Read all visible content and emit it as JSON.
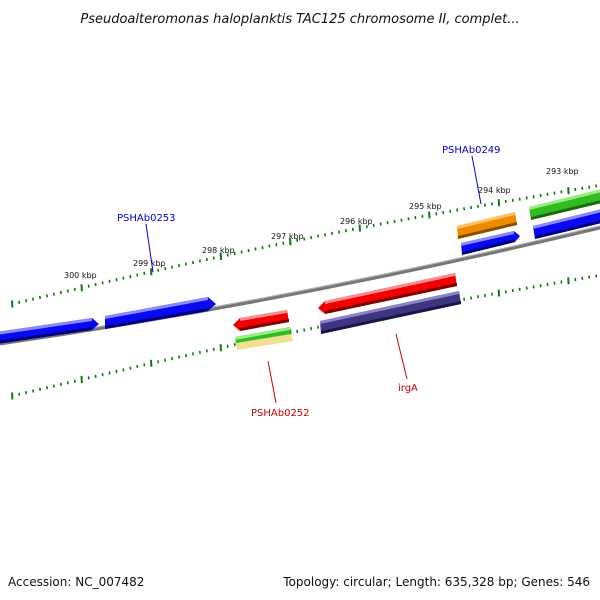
{
  "title": "Pseudoalteromonas haloplanktis TAC125 chromosome II, complet...",
  "footer": {
    "accession": "Accession: NC_007482",
    "summary": "Topology: circular; Length: 635,328 bp; Genes: 546"
  },
  "ticks": [
    {
      "label": "300 kbp"
    },
    {
      "label": "299 kbp"
    },
    {
      "label": "298 kbp"
    },
    {
      "label": "297 kbp"
    },
    {
      "label": "296 kbp"
    },
    {
      "label": "295 kbp"
    },
    {
      "label": "294 kbp"
    },
    {
      "label": "293 kbp"
    }
  ],
  "gene_labels": [
    {
      "text": "PSHAb0253",
      "color": "#0000cc"
    },
    {
      "text": "PSHAb0249",
      "color": "#0000cc"
    },
    {
      "text": "PSHAb0252",
      "color": "#cc0000"
    },
    {
      "text": "irgA",
      "color": "#cc0000"
    }
  ],
  "colors": {
    "backbone": "#777777",
    "tick": "#117711",
    "blue": "#0a0af0",
    "red": "#f00000",
    "orange": "#ef8a00",
    "green": "#33bb22",
    "yellow": "#efe090",
    "purple": "#3d3580"
  }
}
